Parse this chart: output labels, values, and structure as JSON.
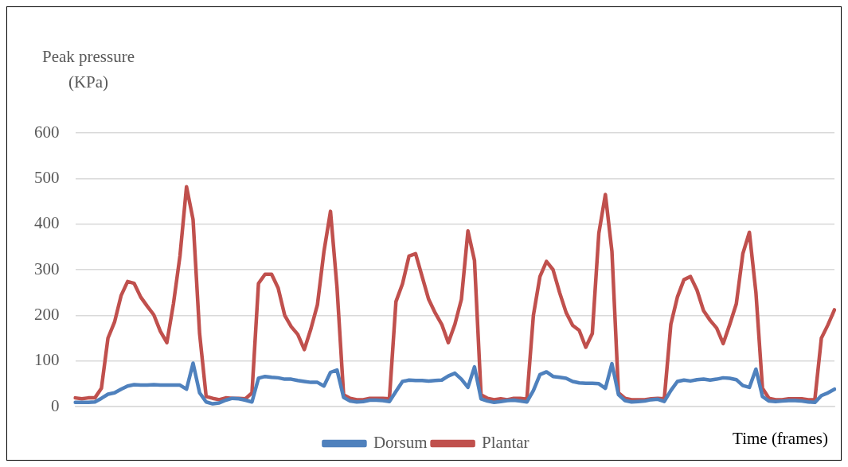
{
  "chart_data": {
    "type": "line",
    "ylabel": "Peak pressure (KPa)",
    "xlabel": "Time (frames)",
    "categories": [
      null,
      null,
      null,
      null,
      null,
      null,
      null,
      null,
      null,
      null,
      null,
      null,
      null,
      null,
      null,
      null,
      null,
      null,
      null,
      null,
      null,
      null,
      null,
      null,
      null,
      null,
      null,
      null,
      null,
      null,
      null,
      null,
      null,
      null,
      null,
      null,
      null,
      null,
      null,
      null,
      null,
      null,
      null,
      null,
      null,
      null,
      null,
      null,
      null,
      null,
      null,
      null,
      null,
      null,
      null,
      null,
      null,
      null,
      null,
      null,
      null,
      null,
      null,
      null,
      null,
      null,
      null,
      null,
      null,
      null,
      null,
      null,
      null,
      null,
      null,
      null,
      null,
      null,
      null,
      null,
      null,
      null,
      null,
      null,
      null,
      null,
      null,
      null,
      null,
      null,
      null,
      null,
      null,
      null,
      null,
      null,
      null,
      null,
      null,
      null,
      null,
      null,
      null,
      null,
      null,
      null,
      null,
      null,
      null,
      null,
      null,
      null,
      null,
      null,
      null,
      null,
      null
    ],
    "series": [
      {
        "name": "Dorsum",
        "color": "#4f81bd",
        "values": [
          9,
          9,
          9,
          10,
          18,
          27,
          30,
          38,
          45,
          48,
          47,
          47,
          48,
          47,
          47,
          47,
          47,
          38,
          95,
          30,
          10,
          6,
          8,
          14,
          18,
          17,
          14,
          10,
          62,
          66,
          64,
          63,
          60,
          60,
          57,
          55,
          53,
          53,
          45,
          75,
          80,
          20,
          12,
          10,
          11,
          14,
          14,
          13,
          11,
          33,
          55,
          58,
          57,
          57,
          56,
          57,
          58,
          67,
          73,
          60,
          42,
          87,
          17,
          12,
          9,
          11,
          13,
          14,
          12,
          10,
          35,
          70,
          76,
          66,
          64,
          62,
          55,
          52,
          51,
          51,
          50,
          40,
          94,
          26,
          13,
          10,
          11,
          12,
          15,
          16,
          11,
          35,
          55,
          58,
          56,
          59,
          60,
          58,
          60,
          63,
          62,
          59,
          46,
          42,
          82,
          22,
          12,
          11,
          12,
          13,
          13,
          12,
          10,
          9,
          24,
          30,
          38
        ]
      },
      {
        "name": "Plantar",
        "color": "#c0504d",
        "values": [
          19,
          17,
          19,
          19,
          40,
          150,
          185,
          243,
          274,
          270,
          240,
          220,
          201,
          165,
          140,
          225,
          330,
          482,
          410,
          160,
          22,
          18,
          15,
          19,
          18,
          18,
          17,
          30,
          270,
          290,
          290,
          260,
          200,
          175,
          158,
          125,
          170,
          223,
          340,
          428,
          260,
          26,
          18,
          15,
          15,
          18,
          18,
          18,
          17,
          230,
          269,
          330,
          335,
          285,
          235,
          205,
          180,
          140,
          180,
          235,
          385,
          320,
          26,
          18,
          15,
          17,
          15,
          18,
          18,
          16,
          200,
          285,
          318,
          300,
          250,
          206,
          178,
          167,
          130,
          160,
          380,
          465,
          340,
          30,
          18,
          15,
          15,
          15,
          17,
          18,
          17,
          180,
          240,
          278,
          285,
          255,
          210,
          189,
          172,
          138,
          180,
          225,
          335,
          382,
          250,
          40,
          18,
          15,
          15,
          17,
          17,
          17,
          15,
          15,
          150,
          179,
          212
        ]
      }
    ],
    "ylim": [
      0,
      600
    ],
    "yticks": [
      0,
      100,
      200,
      300,
      400,
      500,
      600
    ],
    "grid": "y",
    "legend": "bottom",
    "marker": "none",
    "line_style": "solid"
  }
}
